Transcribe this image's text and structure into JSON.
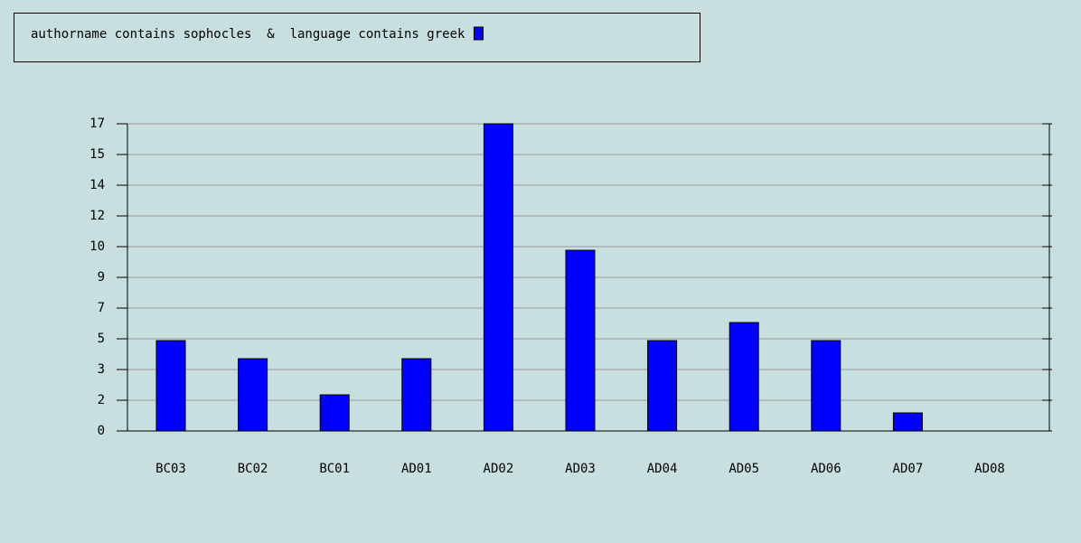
{
  "chart_data": {
    "type": "bar",
    "series": [
      {
        "name": "authorname contains sophocles  &  language contains greek",
        "color": "#0000ff",
        "values": [
          5,
          4,
          2,
          4,
          17,
          10,
          5,
          6,
          5,
          1,
          0
        ]
      }
    ],
    "categories": [
      "BC03",
      "BC02",
      "BC01",
      "AD01",
      "AD02",
      "AD03",
      "AD04",
      "AD05",
      "AD06",
      "AD07",
      "AD08"
    ],
    "ylim": [
      0,
      17
    ],
    "yticks": [
      0,
      {
        "value": 1.7,
        "label": "2"
      },
      {
        "value": 3.4,
        "label": "3"
      },
      {
        "value": 5.1,
        "label": "5"
      },
      {
        "value": 6.8,
        "label": "7"
      },
      {
        "value": 8.5,
        "label": "9"
      },
      {
        "value": 10.2,
        "label": "10"
      },
      {
        "value": 11.9,
        "label": "12"
      },
      {
        "value": 13.6,
        "label": "14"
      },
      {
        "value": 15.3,
        "label": "15"
      },
      17
    ],
    "grid": true
  }
}
